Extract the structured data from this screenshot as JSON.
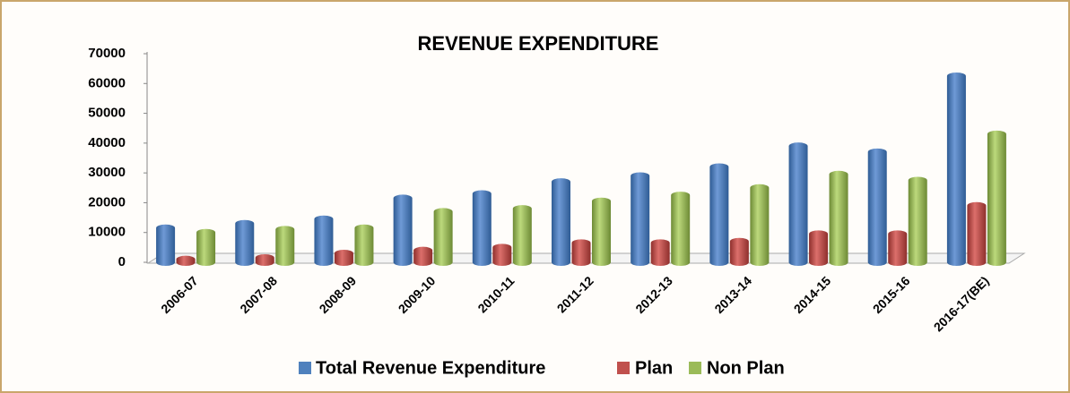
{
  "chart_data": {
    "type": "bar",
    "title": "REVENUE EXPENDITURE",
    "categories": [
      "2006-07",
      "2007-08",
      "2008-09",
      "2009-10",
      "2010-11",
      "2011-12",
      "2012-13",
      "2013-14",
      "2014-15",
      "2015-16",
      "2016-17(BE)"
    ],
    "series": [
      {
        "name": "Total Revenue Expenditure",
        "color": "#4f81bd",
        "values": [
          11500,
          13000,
          14500,
          21500,
          23000,
          27000,
          29000,
          32000,
          39000,
          37000,
          62500
        ]
      },
      {
        "name": "Plan",
        "color": "#c0504d",
        "values": [
          1000,
          1500,
          3000,
          4000,
          5000,
          6500,
          6500,
          7000,
          9500,
          9500,
          19000
        ]
      },
      {
        "name": "Non Plan",
        "color": "#9bbb59",
        "values": [
          10000,
          11000,
          11500,
          17000,
          18000,
          20500,
          22500,
          25000,
          29500,
          27500,
          43000
        ]
      }
    ],
    "ylim": [
      0,
      70000
    ],
    "yticks": [
      0,
      10000,
      20000,
      30000,
      40000,
      50000,
      60000,
      70000
    ],
    "grid": false,
    "legend": "bottom"
  }
}
